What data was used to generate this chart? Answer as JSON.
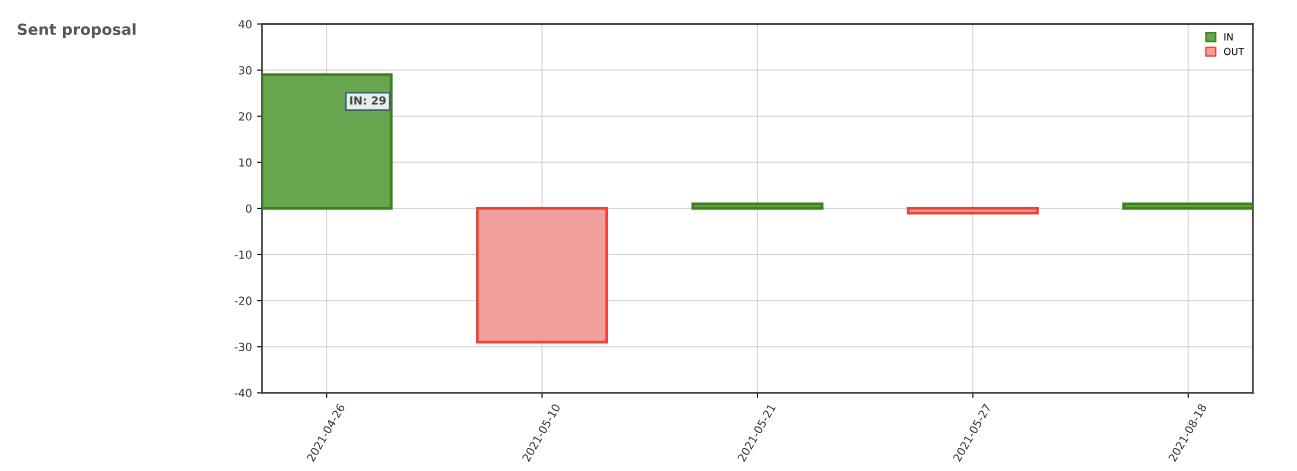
{
  "chart_data": {
    "type": "bar",
    "title": "Sent proposal",
    "categories": [
      "2021-04-26",
      "2021-05-10",
      "2021-05-21",
      "2021-05-27",
      "2021-08-18"
    ],
    "series": [
      {
        "name": "IN",
        "color": "#67a64e",
        "values": [
          29,
          null,
          1,
          null,
          1
        ]
      },
      {
        "name": "OUT",
        "color": "#f0a09c",
        "values": [
          null,
          -29,
          null,
          -1,
          null
        ]
      }
    ],
    "ylim": [
      -40,
      40
    ],
    "yticks": [
      -40,
      -30,
      -20,
      -10,
      0,
      10,
      20,
      30,
      40
    ],
    "grid": true,
    "legend": "top right",
    "annotations": [
      "IN: 29"
    ]
  }
}
